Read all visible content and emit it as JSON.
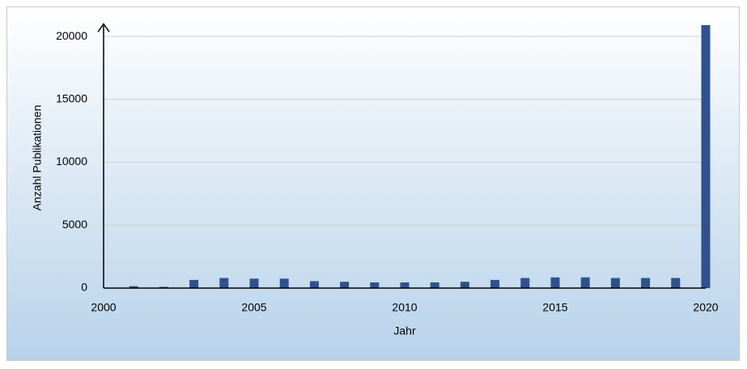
{
  "chart_data": {
    "type": "bar",
    "x_label": "Jahr",
    "y_label": "Anzahl Publikationen",
    "x": [
      2001,
      2002,
      2003,
      2004,
      2005,
      2006,
      2007,
      2008,
      2009,
      2010,
      2011,
      2012,
      2013,
      2014,
      2015,
      2016,
      2017,
      2018,
      2019,
      2020
    ],
    "values": [
      150,
      100,
      650,
      800,
      750,
      750,
      550,
      500,
      450,
      450,
      450,
      500,
      650,
      800,
      850,
      850,
      800,
      800,
      800,
      20900
    ],
    "color": "#2f528f",
    "xlim": [
      2000,
      2020
    ],
    "xticks": [
      2000,
      2005,
      2010,
      2015,
      2020
    ],
    "ylim": [
      0,
      21000
    ],
    "yticks": [
      0,
      5000,
      10000,
      15000,
      20000
    ],
    "grid": true
  }
}
